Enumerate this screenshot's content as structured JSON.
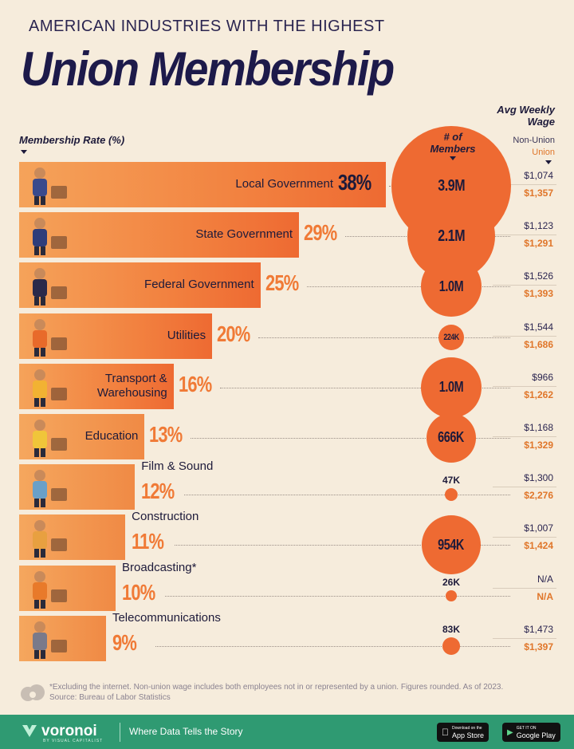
{
  "header": {
    "subtitle": "AMERICAN INDUSTRIES WITH THE HIGHEST",
    "title": "Union Membership"
  },
  "legend": {
    "rate_label": "Membership Rate (%)",
    "members_label_1": "# of",
    "members_label_2": "Members",
    "wage_label_1": "Avg Weekly",
    "wage_label_2": "Wage",
    "non_union_label": "Non-Union",
    "union_label": "Union"
  },
  "colors": {
    "accent": "#ee6a32",
    "bar_light": "#f5a35a",
    "navy": "#1d1a4a",
    "background": "#f6ecdc",
    "footer": "#2f9a72"
  },
  "chart_data": {
    "type": "bar",
    "title": "Union Membership",
    "ylabel": "Membership Rate (%)",
    "ylim": [
      0,
      40
    ],
    "categories": [
      "Local Government",
      "State Government",
      "Federal Government",
      "Utilities",
      "Transport & Warehousing",
      "Education",
      "Film & Sound",
      "Construction",
      "Broadcasting*",
      "Telecommunications"
    ],
    "category_lines": [
      [
        "Local Government"
      ],
      [
        "State Government"
      ],
      [
        "Federal Government"
      ],
      [
        "Utilities"
      ],
      [
        "Transport &",
        "Warehousing"
      ],
      [
        "Education"
      ],
      [
        "Film & Sound"
      ],
      [
        "Construction"
      ],
      [
        "Broadcasting*"
      ],
      [
        "Telecommunications"
      ]
    ],
    "series": [
      {
        "name": "Membership Rate (%)",
        "values": [
          38,
          29,
          25,
          20,
          16,
          13,
          12,
          11,
          10,
          9
        ],
        "labels": [
          "38%",
          "29%",
          "25%",
          "20%",
          "16%",
          "13%",
          "12%",
          "11%",
          "10%",
          "9%"
        ]
      },
      {
        "name": "# of Members",
        "values": [
          3900000,
          2100000,
          1000000,
          224000,
          1000000,
          666000,
          47000,
          954000,
          26000,
          83000
        ],
        "labels": [
          "3.9M",
          "2.1M",
          "1.0M",
          "224K",
          "1.0M",
          "666K",
          "47K",
          "954K",
          "26K",
          "83K"
        ]
      }
    ],
    "wages": {
      "non_union": [
        "$1,074",
        "$1,123",
        "$1,526",
        "$1,544",
        "$966",
        "$1,168",
        "$1,300",
        "$1,007",
        "N/A",
        "$1,473"
      ],
      "union": [
        "$1,357",
        "$1,291",
        "$1,393",
        "$1,686",
        "$1,262",
        "$1,329",
        "$2,276",
        "$1,424",
        "N/A",
        "$1,397"
      ]
    }
  },
  "footnote": {
    "line1": "*Excluding the internet. Non-union wage includes both employees not in or represented by a union. Figures rounded. As of 2023.",
    "line2": "Source: Bureau of Labor Statistics"
  },
  "footer": {
    "brand": "voronoi",
    "brand_sub": "BY VISUAL CAPITALIST",
    "tagline": "Where Data Tells the Story",
    "app_store_small": "Download on the",
    "app_store": "App Store",
    "google_play_small": "GET IT ON",
    "google_play": "Google Play"
  }
}
